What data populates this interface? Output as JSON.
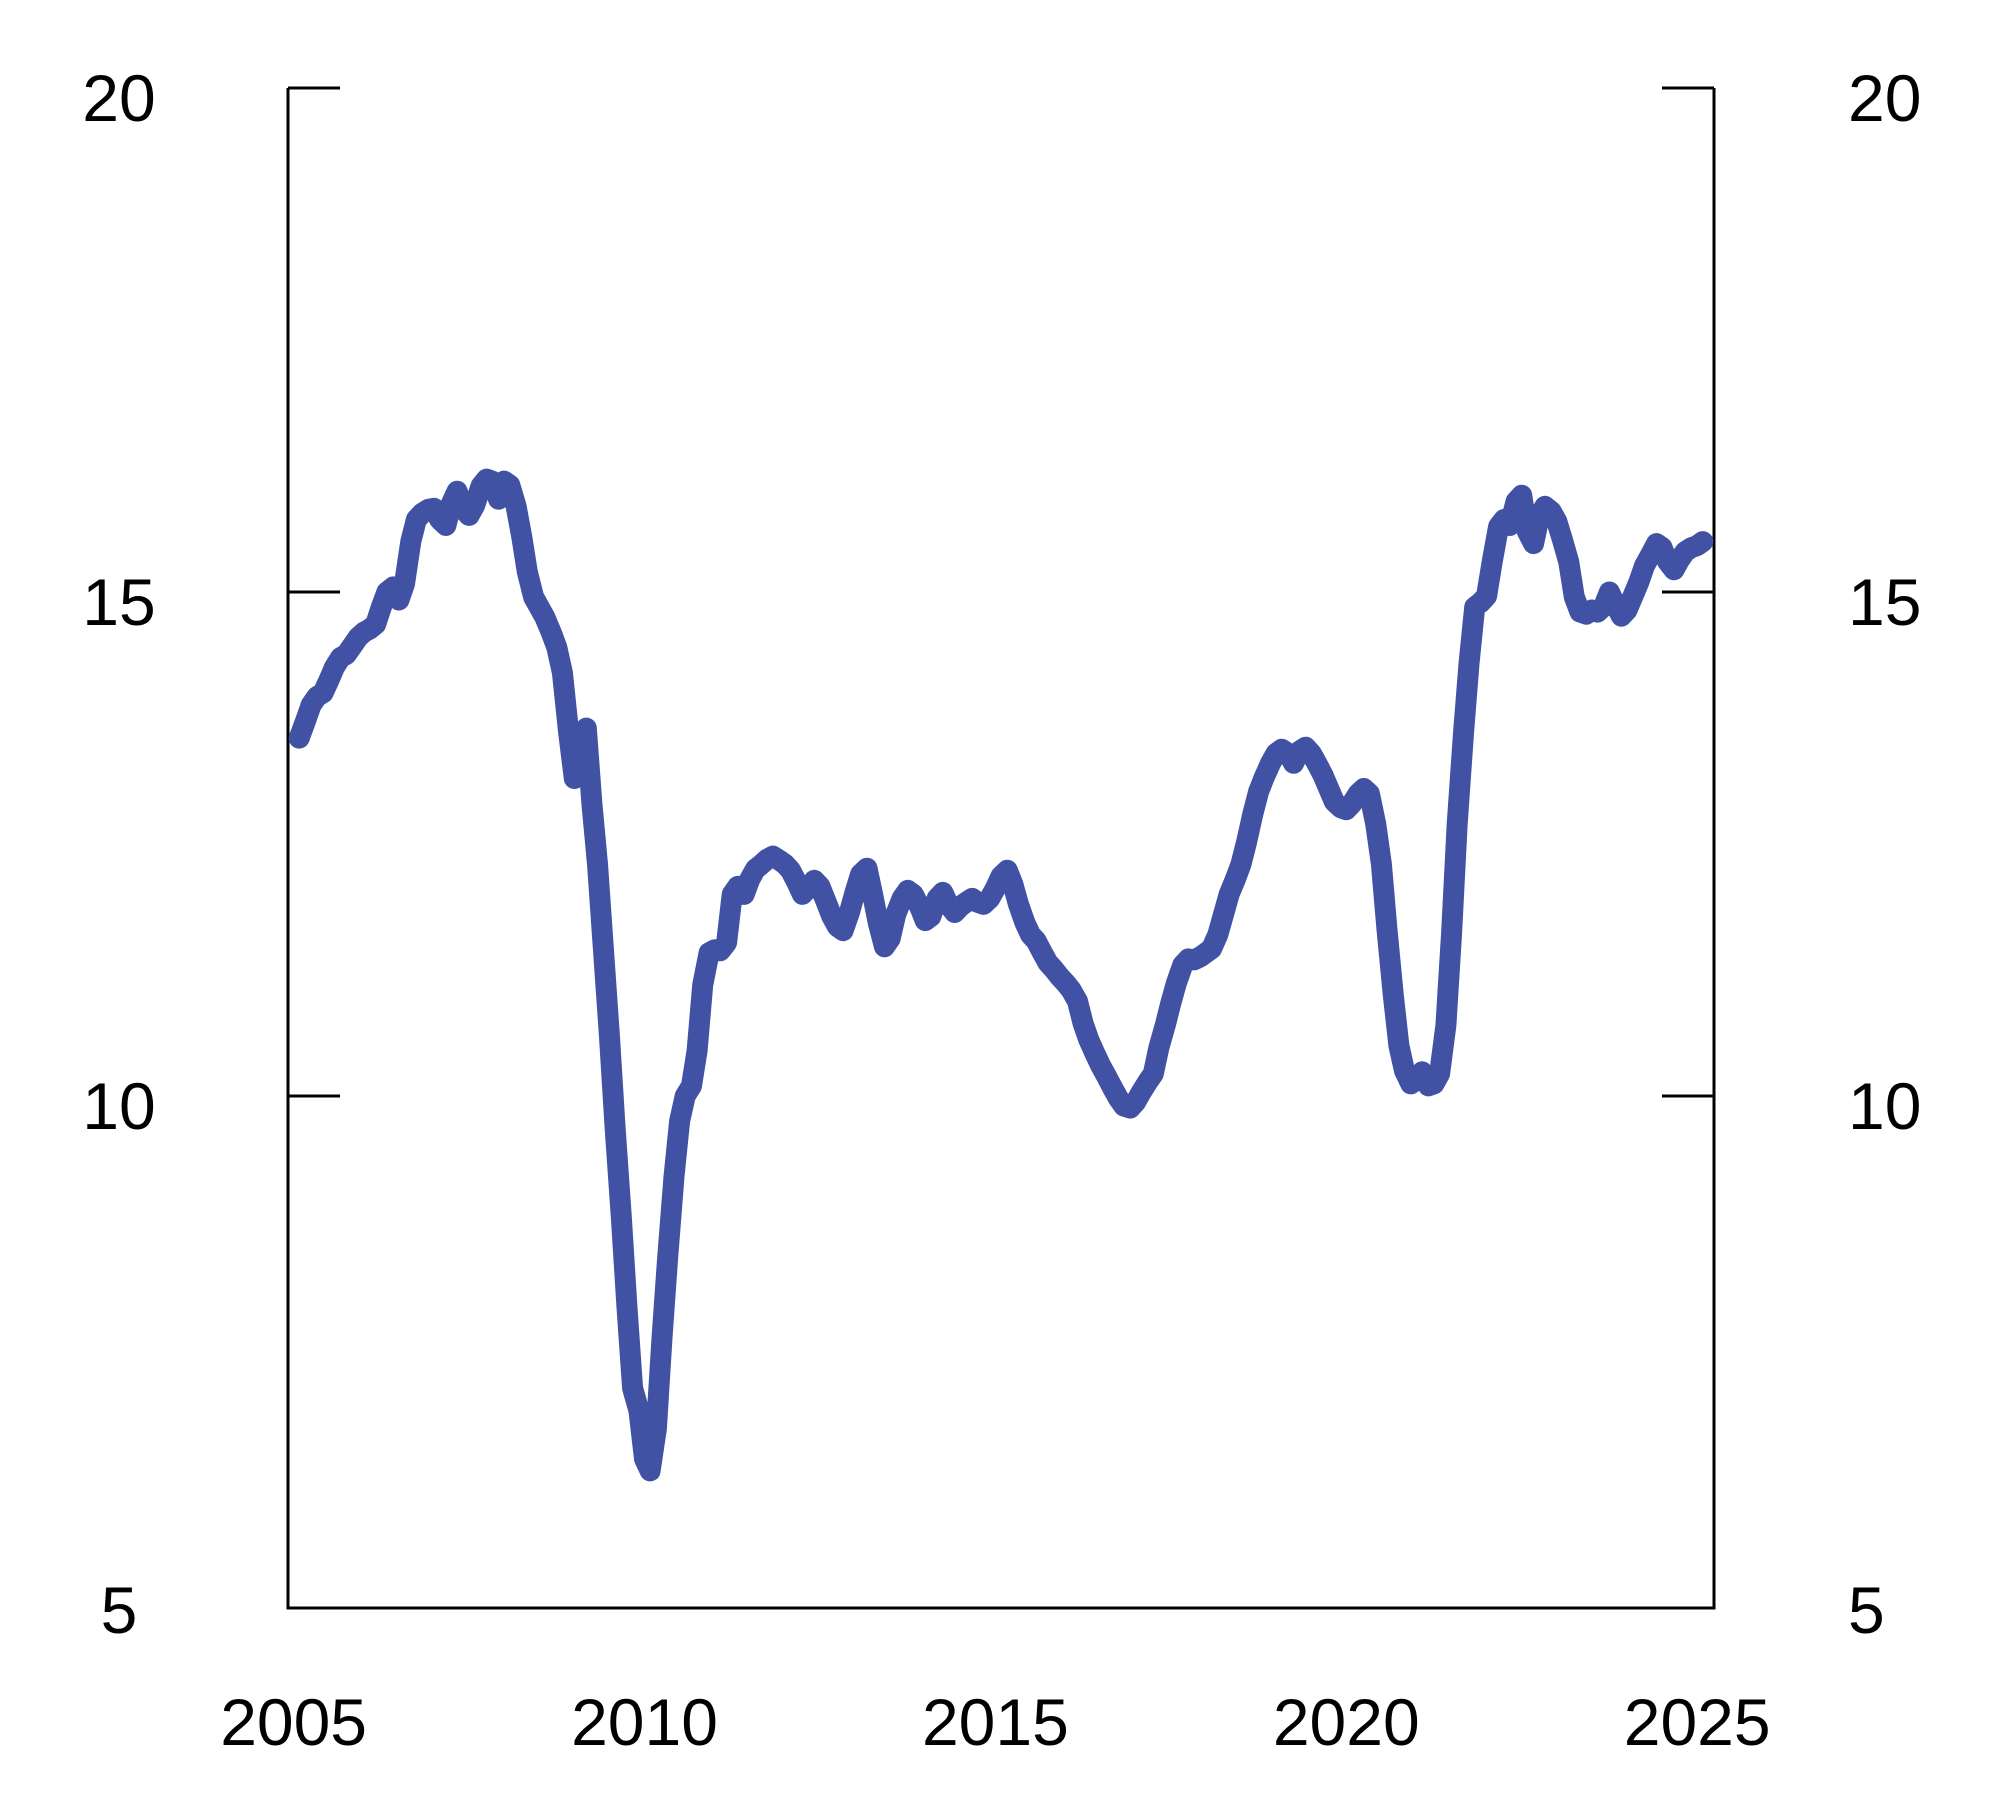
{
  "chart_data": {
    "type": "line",
    "title": "",
    "xlabel": "",
    "ylabel": "",
    "grid": false,
    "legend": false,
    "colors": {
      "line": "#4152A4",
      "axis": "#000000",
      "background": "#FFFFFF"
    },
    "x_axis": {
      "range": [
        2004.92,
        2025.24
      ],
      "ticks": [
        2005,
        2010,
        2015,
        2020,
        2025
      ],
      "tick_labels": [
        "2005",
        "2010",
        "2015",
        "2020",
        "2025"
      ]
    },
    "y_axis_left": {
      "range": [
        4.92,
        20
      ],
      "ticks": [
        5,
        10,
        15,
        20
      ],
      "tick_labels": [
        "5",
        "10",
        "15",
        "20"
      ],
      "tick_marks": [
        10,
        15,
        20
      ]
    },
    "y_axis_right": {
      "range": [
        4.92,
        20
      ],
      "ticks": [
        5,
        10,
        15,
        20
      ],
      "tick_labels": [
        "5",
        "10",
        "15",
        "20"
      ],
      "tick_marks": [
        10,
        15,
        20
      ]
    },
    "series": [
      {
        "name": "value",
        "color": "#4152A4",
        "points": [
          [
            2005.08,
            13.55
          ],
          [
            2005.17,
            13.72
          ],
          [
            2005.25,
            13.88
          ],
          [
            2005.33,
            13.96
          ],
          [
            2005.42,
            14.0
          ],
          [
            2005.5,
            14.12
          ],
          [
            2005.58,
            14.25
          ],
          [
            2005.67,
            14.35
          ],
          [
            2005.75,
            14.38
          ],
          [
            2005.83,
            14.46
          ],
          [
            2005.92,
            14.55
          ],
          [
            2006.0,
            14.6
          ],
          [
            2006.08,
            14.63
          ],
          [
            2006.17,
            14.68
          ],
          [
            2006.25,
            14.85
          ],
          [
            2006.33,
            15.0
          ],
          [
            2006.42,
            15.05
          ],
          [
            2006.5,
            14.92
          ],
          [
            2006.58,
            15.08
          ],
          [
            2006.67,
            15.5
          ],
          [
            2006.75,
            15.72
          ],
          [
            2006.83,
            15.78
          ],
          [
            2006.92,
            15.82
          ],
          [
            2007.0,
            15.83
          ],
          [
            2007.08,
            15.72
          ],
          [
            2007.17,
            15.66
          ],
          [
            2007.25,
            15.88
          ],
          [
            2007.33,
            16.0
          ],
          [
            2007.42,
            15.82
          ],
          [
            2007.5,
            15.76
          ],
          [
            2007.58,
            15.86
          ],
          [
            2007.67,
            16.05
          ],
          [
            2007.75,
            16.12
          ],
          [
            2007.83,
            16.1
          ],
          [
            2007.92,
            15.92
          ],
          [
            2008.0,
            16.1
          ],
          [
            2008.08,
            16.06
          ],
          [
            2008.17,
            15.85
          ],
          [
            2008.25,
            15.55
          ],
          [
            2008.33,
            15.2
          ],
          [
            2008.42,
            14.95
          ],
          [
            2008.5,
            14.85
          ],
          [
            2008.58,
            14.75
          ],
          [
            2008.67,
            14.6
          ],
          [
            2008.75,
            14.45
          ],
          [
            2008.83,
            14.2
          ],
          [
            2008.92,
            13.6
          ],
          [
            2009.0,
            13.15
          ],
          [
            2009.08,
            13.58
          ],
          [
            2009.17,
            13.65
          ],
          [
            2009.25,
            12.9
          ],
          [
            2009.33,
            12.3
          ],
          [
            2009.42,
            11.4
          ],
          [
            2009.5,
            10.6
          ],
          [
            2009.58,
            9.7
          ],
          [
            2009.67,
            8.8
          ],
          [
            2009.75,
            7.9
          ],
          [
            2009.83,
            7.1
          ],
          [
            2009.92,
            6.88
          ],
          [
            2010.0,
            6.4
          ],
          [
            2010.08,
            6.28
          ],
          [
            2010.17,
            6.7
          ],
          [
            2010.25,
            7.6
          ],
          [
            2010.33,
            8.4
          ],
          [
            2010.42,
            9.2
          ],
          [
            2010.5,
            9.75
          ],
          [
            2010.58,
            10.0
          ],
          [
            2010.67,
            10.1
          ],
          [
            2010.75,
            10.45
          ],
          [
            2010.83,
            11.1
          ],
          [
            2010.92,
            11.42
          ],
          [
            2011.0,
            11.45
          ],
          [
            2011.08,
            11.44
          ],
          [
            2011.17,
            11.52
          ],
          [
            2011.25,
            12.0
          ],
          [
            2011.33,
            12.08
          ],
          [
            2011.42,
            12.0
          ],
          [
            2011.5,
            12.15
          ],
          [
            2011.58,
            12.25
          ],
          [
            2011.67,
            12.3
          ],
          [
            2011.75,
            12.35
          ],
          [
            2011.83,
            12.38
          ],
          [
            2011.92,
            12.34
          ],
          [
            2012.0,
            12.3
          ],
          [
            2012.08,
            12.24
          ],
          [
            2012.17,
            12.12
          ],
          [
            2012.25,
            12.0
          ],
          [
            2012.33,
            12.06
          ],
          [
            2012.42,
            12.14
          ],
          [
            2012.5,
            12.08
          ],
          [
            2012.58,
            11.94
          ],
          [
            2012.67,
            11.78
          ],
          [
            2012.75,
            11.68
          ],
          [
            2012.83,
            11.64
          ],
          [
            2012.92,
            11.82
          ],
          [
            2013.0,
            12.02
          ],
          [
            2013.08,
            12.2
          ],
          [
            2013.17,
            12.26
          ],
          [
            2013.25,
            12.0
          ],
          [
            2013.33,
            11.72
          ],
          [
            2013.42,
            11.48
          ],
          [
            2013.5,
            11.56
          ],
          [
            2013.58,
            11.8
          ],
          [
            2013.67,
            11.96
          ],
          [
            2013.75,
            12.04
          ],
          [
            2013.83,
            12.0
          ],
          [
            2013.92,
            11.88
          ],
          [
            2014.0,
            11.74
          ],
          [
            2014.08,
            11.78
          ],
          [
            2014.17,
            11.96
          ],
          [
            2014.25,
            12.02
          ],
          [
            2014.33,
            11.9
          ],
          [
            2014.42,
            11.82
          ],
          [
            2014.5,
            11.88
          ],
          [
            2014.58,
            11.92
          ],
          [
            2014.67,
            11.96
          ],
          [
            2014.75,
            11.92
          ],
          [
            2014.83,
            11.9
          ],
          [
            2014.92,
            11.96
          ],
          [
            2015.0,
            12.06
          ],
          [
            2015.08,
            12.18
          ],
          [
            2015.17,
            12.24
          ],
          [
            2015.25,
            12.1
          ],
          [
            2015.33,
            11.9
          ],
          [
            2015.42,
            11.72
          ],
          [
            2015.5,
            11.6
          ],
          [
            2015.58,
            11.54
          ],
          [
            2015.67,
            11.42
          ],
          [
            2015.75,
            11.32
          ],
          [
            2015.83,
            11.26
          ],
          [
            2015.92,
            11.18
          ],
          [
            2016.0,
            11.12
          ],
          [
            2016.08,
            11.05
          ],
          [
            2016.17,
            10.94
          ],
          [
            2016.25,
            10.72
          ],
          [
            2016.33,
            10.56
          ],
          [
            2016.42,
            10.42
          ],
          [
            2016.5,
            10.3
          ],
          [
            2016.58,
            10.2
          ],
          [
            2016.67,
            10.08
          ],
          [
            2016.75,
            9.98
          ],
          [
            2016.83,
            9.9
          ],
          [
            2016.92,
            9.88
          ],
          [
            2017.0,
            9.94
          ],
          [
            2017.08,
            10.04
          ],
          [
            2017.17,
            10.14
          ],
          [
            2017.25,
            10.22
          ],
          [
            2017.33,
            10.48
          ],
          [
            2017.42,
            10.7
          ],
          [
            2017.5,
            10.92
          ],
          [
            2017.58,
            11.12
          ],
          [
            2017.67,
            11.3
          ],
          [
            2017.75,
            11.36
          ],
          [
            2017.83,
            11.35
          ],
          [
            2017.92,
            11.38
          ],
          [
            2018.0,
            11.42
          ],
          [
            2018.08,
            11.46
          ],
          [
            2018.17,
            11.6
          ],
          [
            2018.25,
            11.8
          ],
          [
            2018.33,
            12.0
          ],
          [
            2018.42,
            12.15
          ],
          [
            2018.5,
            12.3
          ],
          [
            2018.58,
            12.52
          ],
          [
            2018.67,
            12.8
          ],
          [
            2018.75,
            13.02
          ],
          [
            2018.83,
            13.16
          ],
          [
            2018.92,
            13.3
          ],
          [
            2019.0,
            13.4
          ],
          [
            2019.08,
            13.44
          ],
          [
            2019.17,
            13.4
          ],
          [
            2019.25,
            13.3
          ],
          [
            2019.33,
            13.42
          ],
          [
            2019.42,
            13.46
          ],
          [
            2019.5,
            13.4
          ],
          [
            2019.58,
            13.3
          ],
          [
            2019.67,
            13.18
          ],
          [
            2019.75,
            13.05
          ],
          [
            2019.83,
            12.92
          ],
          [
            2019.92,
            12.86
          ],
          [
            2020.0,
            12.84
          ],
          [
            2020.08,
            12.9
          ],
          [
            2020.17,
            13.0
          ],
          [
            2020.25,
            13.05
          ],
          [
            2020.33,
            13.0
          ],
          [
            2020.42,
            12.7
          ],
          [
            2020.5,
            12.3
          ],
          [
            2020.58,
            11.65
          ],
          [
            2020.67,
            11.0
          ],
          [
            2020.75,
            10.5
          ],
          [
            2020.83,
            10.25
          ],
          [
            2020.92,
            10.12
          ],
          [
            2021.0,
            10.16
          ],
          [
            2021.08,
            10.24
          ],
          [
            2021.17,
            10.1
          ],
          [
            2021.25,
            10.12
          ],
          [
            2021.33,
            10.22
          ],
          [
            2021.42,
            10.7
          ],
          [
            2021.5,
            11.6
          ],
          [
            2021.58,
            12.7
          ],
          [
            2021.67,
            13.6
          ],
          [
            2021.75,
            14.3
          ],
          [
            2021.83,
            14.85
          ],
          [
            2021.92,
            14.9
          ],
          [
            2022.0,
            14.96
          ],
          [
            2022.08,
            15.3
          ],
          [
            2022.17,
            15.65
          ],
          [
            2022.25,
            15.72
          ],
          [
            2022.33,
            15.66
          ],
          [
            2022.42,
            15.9
          ],
          [
            2022.5,
            15.96
          ],
          [
            2022.58,
            15.6
          ],
          [
            2022.67,
            15.48
          ],
          [
            2022.75,
            15.75
          ],
          [
            2022.83,
            15.85
          ],
          [
            2022.92,
            15.8
          ],
          [
            2023.0,
            15.7
          ],
          [
            2023.08,
            15.52
          ],
          [
            2023.17,
            15.3
          ],
          [
            2023.25,
            14.95
          ],
          [
            2023.33,
            14.8
          ],
          [
            2023.42,
            14.78
          ],
          [
            2023.5,
            14.82
          ],
          [
            2023.58,
            14.8
          ],
          [
            2023.67,
            14.86
          ],
          [
            2023.75,
            15.0
          ],
          [
            2023.83,
            14.88
          ],
          [
            2023.92,
            14.76
          ],
          [
            2024.0,
            14.82
          ],
          [
            2024.08,
            14.95
          ],
          [
            2024.17,
            15.1
          ],
          [
            2024.25,
            15.26
          ],
          [
            2024.33,
            15.36
          ],
          [
            2024.42,
            15.48
          ],
          [
            2024.5,
            15.44
          ],
          [
            2024.58,
            15.3
          ],
          [
            2024.67,
            15.22
          ],
          [
            2024.75,
            15.32
          ],
          [
            2024.83,
            15.4
          ],
          [
            2024.92,
            15.44
          ],
          [
            2025.0,
            15.46
          ],
          [
            2025.08,
            15.5
          ]
        ]
      }
    ]
  }
}
